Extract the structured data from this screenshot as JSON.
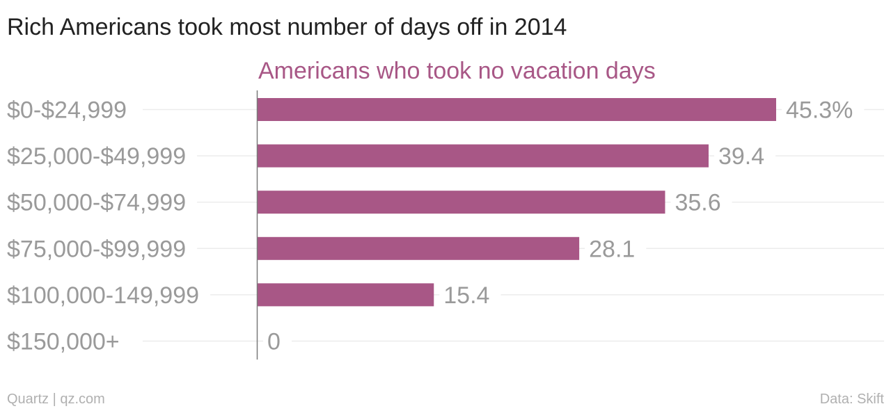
{
  "footer": {
    "source_left": "Quartz | qz.com",
    "source_right": "Data: Skift"
  },
  "colors": {
    "bar": "#a85786",
    "series_title": "#a85786",
    "title": "#222222",
    "label": "#9a9a9a",
    "grid": "#ececec",
    "axis": "#7a7a7a",
    "footer": "#b0b0b0"
  },
  "chart_data": {
    "type": "bar",
    "orientation": "horizontal",
    "title": "Rich Americans took most number of days off in 2014",
    "series": [
      {
        "name": "Americans who took no vacation days",
        "values": [
          45.3,
          39.4,
          35.6,
          28.1,
          15.4,
          0
        ]
      }
    ],
    "categories": [
      "$0-$24,999",
      "$25,000-$49,999",
      "$50,000-$74,999",
      "$75,000-$99,999",
      "$100,000-149,999",
      "$150,000+"
    ],
    "value_labels": [
      "45.3%",
      "39.4",
      "35.6",
      "28.1",
      "15.4",
      "0"
    ],
    "xlim": [
      0,
      45.3
    ],
    "grid": true,
    "legend": "none"
  }
}
